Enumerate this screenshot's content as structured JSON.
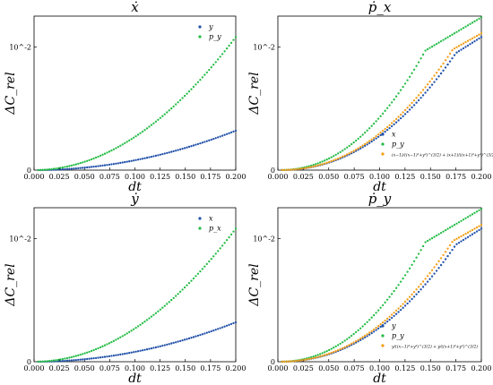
{
  "chart_data": [
    {
      "type": "scatter",
      "title": "ẋ",
      "xlabel": "dt",
      "ylabel": "ΔC_rel",
      "xlim": [
        0.0,
        0.2
      ],
      "ylim": [
        0.0,
        0.0125
      ],
      "yscale": "symlog",
      "x_ticks": [
        "0.000",
        "0.025",
        "0.050",
        "0.075",
        "0.100",
        "0.125",
        "0.150",
        "0.175",
        "0.200"
      ],
      "y_ticks": [
        "0",
        "10^-2"
      ],
      "legend_position": "top-right",
      "series": [
        {
          "name": "y",
          "color": "#1f4fa8",
          "curve": "power",
          "coeff": 0.08,
          "power": 2.0
        },
        {
          "name": "p_y",
          "color": "#22bb44",
          "curve": "power",
          "coeff": 0.27,
          "power": 2.0
        }
      ]
    },
    {
      "type": "scatter",
      "title": "ṗ_x",
      "xlabel": "dt",
      "ylabel": "ΔC_rel",
      "xlim": [
        0.0,
        0.2
      ],
      "ylim": [
        0.0,
        0.0125
      ],
      "yscale": "symlog",
      "x_ticks": [
        "0.000",
        "0.025",
        "0.050",
        "0.075",
        "0.100",
        "0.125",
        "0.150",
        "0.175",
        "0.200"
      ],
      "y_ticks": [
        "0",
        "10^-2"
      ],
      "legend_position": "bottom-right",
      "series": [
        {
          "name": "x",
          "color": "#1f4fa8",
          "curve": "kink",
          "kink_x": 0.175,
          "kink_y": 0.0095,
          "end_y": 0.0108,
          "power": 2.2
        },
        {
          "name": "p_y",
          "color": "#22bb44",
          "curve": "kink",
          "kink_x": 0.145,
          "kink_y": 0.0097,
          "end_y": 0.0124,
          "power": 2.2
        },
        {
          "name": "(x−1)/((x−1)²+y²)^(3/2) + (x+1)/((x+1)²+y²)^(3/2)",
          "color": "#f39c12",
          "curve": "kink",
          "kink_x": 0.172,
          "kink_y": 0.0098,
          "end_y": 0.0111,
          "power": 2.2
        }
      ]
    },
    {
      "type": "scatter",
      "title": "ẏ",
      "xlabel": "dt",
      "ylabel": "ΔC_rel",
      "xlim": [
        0.0,
        0.2
      ],
      "ylim": [
        0.0,
        0.0125
      ],
      "yscale": "symlog",
      "x_ticks": [
        "0.000",
        "0.025",
        "0.050",
        "0.075",
        "0.100",
        "0.125",
        "0.150",
        "0.175",
        "0.200"
      ],
      "y_ticks": [
        "0",
        "10^-2"
      ],
      "legend_position": "top-right",
      "series": [
        {
          "name": "x",
          "color": "#1f4fa8",
          "curve": "power",
          "coeff": 0.08,
          "power": 2.0
        },
        {
          "name": "p_x",
          "color": "#22bb44",
          "curve": "power",
          "coeff": 0.27,
          "power": 2.0
        }
      ]
    },
    {
      "type": "scatter",
      "title": "ṗ_y",
      "xlabel": "dt",
      "ylabel": "ΔC_rel",
      "xlim": [
        0.0,
        0.2
      ],
      "ylim": [
        0.0,
        0.0125
      ],
      "yscale": "symlog",
      "x_ticks": [
        "0.000",
        "0.025",
        "0.050",
        "0.075",
        "0.100",
        "0.125",
        "0.150",
        "0.175",
        "0.200"
      ],
      "y_ticks": [
        "0",
        "10^-2"
      ],
      "legend_position": "bottom-right",
      "series": [
        {
          "name": "y",
          "color": "#1f4fa8",
          "curve": "kink",
          "kink_x": 0.175,
          "kink_y": 0.0095,
          "end_y": 0.0108,
          "power": 2.2
        },
        {
          "name": "p_y",
          "color": "#22bb44",
          "curve": "kink",
          "kink_x": 0.145,
          "kink_y": 0.0097,
          "end_y": 0.0124,
          "power": 2.2
        },
        {
          "name": "y/((x−1)²+y²)^(3/2) + y/((x+1)²+y²)^(3/2)",
          "color": "#f39c12",
          "curve": "kink",
          "kink_x": 0.172,
          "kink_y": 0.0098,
          "end_y": 0.0111,
          "power": 2.2
        }
      ]
    }
  ]
}
